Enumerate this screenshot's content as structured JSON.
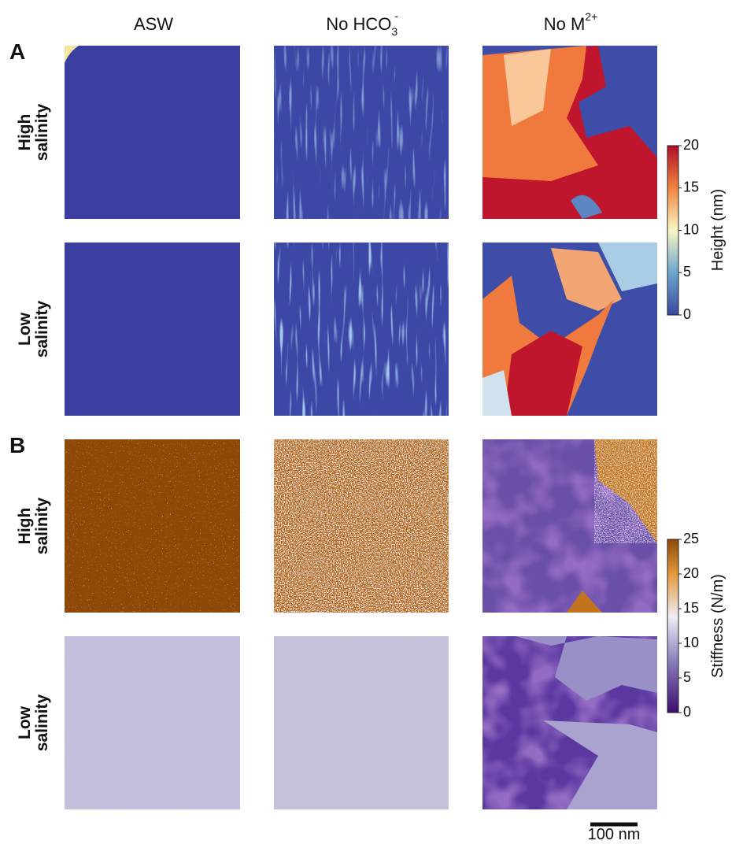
{
  "panel_labels": [
    "A",
    "B"
  ],
  "columns": [
    {
      "text": "ASW"
    },
    {
      "text": "No HCO",
      "sub": "3",
      "sup": "-"
    },
    {
      "text": "No M",
      "sup": "2+"
    }
  ],
  "rows": [
    [
      "High",
      "salinity"
    ],
    [
      "Low",
      "salinity"
    ],
    [
      "High",
      "salinity"
    ],
    [
      "Low",
      "salinity"
    ]
  ],
  "colorbars": [
    {
      "label": "Height (nm)",
      "lim": [
        0,
        20
      ],
      "ticks": [
        0,
        5,
        10,
        15,
        20
      ]
    },
    {
      "label": "Stiffness (N/m)",
      "lim": [
        0,
        25
      ],
      "ticks": [
        0,
        5,
        10,
        15,
        20,
        25
      ]
    }
  ],
  "scale_bar": "100 nm"
}
